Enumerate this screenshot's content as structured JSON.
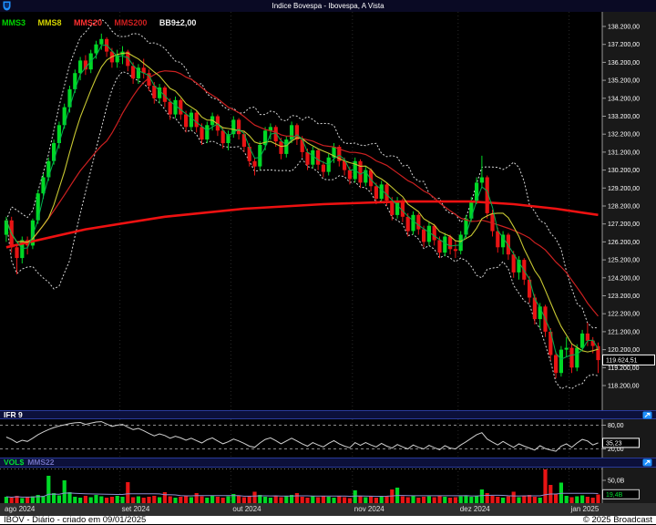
{
  "titlebar": {
    "title": "Indice Bovespa - Ibovespa, A Vista"
  },
  "legend": {
    "items": [
      {
        "label": "MMS3",
        "color": "#00d400"
      },
      {
        "label": "MMS8",
        "color": "#d4d400"
      },
      {
        "label": "MMS20",
        "color": "#ff3030"
      },
      {
        "label": "MMS200",
        "color": "#cf1f1f"
      },
      {
        "label": "BB9±2,00",
        "color": "#f0f0f0"
      }
    ]
  },
  "main_axis": {
    "ticks": [
      "138.200,00",
      "137.200,00",
      "136.200,00",
      "135.200,00",
      "134.200,00",
      "133.200,00",
      "132.200,00",
      "131.200,00",
      "130.200,00",
      "129.200,00",
      "128.200,00",
      "127.200,00",
      "126.200,00",
      "125.200,00",
      "124.200,00",
      "123.200,00",
      "122.200,00",
      "121.200,00",
      "120.200,00",
      "119.200,00",
      "118.200,00"
    ],
    "last_price_label": "119.624,51"
  },
  "time_axis": {
    "labels": [
      {
        "label": "ago 2024",
        "candle": 0
      },
      {
        "label": "set 2024",
        "candle": 22
      },
      {
        "label": "out 2024",
        "candle": 43
      },
      {
        "label": "nov 2024",
        "candle": 66
      },
      {
        "label": "dez 2024",
        "candle": 86
      },
      {
        "label": "jan 2025",
        "candle": 107
      }
    ]
  },
  "ifr_panel": {
    "title": "IFR 9",
    "upper_label": "80,00",
    "lower_label": "20,00",
    "value_label": "35,23"
  },
  "vol_panel": {
    "title": "VOL$",
    "ma_label": "MMS22",
    "tick_label": "50,0B",
    "value_label": "19,4B"
  },
  "status_bar": {
    "left": "IBOV - Diário - criado em 09/01/2025",
    "right": "© 2025 Broadcast"
  },
  "colors": {
    "up": "#00d926",
    "down": "#e81414",
    "mms3": "#00b050",
    "mms8": "#c8c832",
    "mms20": "#cc2020",
    "mms200": "#ee1111",
    "bollinger": "#d8d8d8",
    "ifr_line": "#d0d0d0",
    "vol_ma": "#8c8cd0",
    "panel_header": "#0c103a",
    "accent_blue": "#1e90ff",
    "axis_text": "#ffffff",
    "grid": "#282828"
  },
  "chart_data": {
    "type": "candlestick",
    "symbol": "IBOV",
    "period": "Diário",
    "title": "Indice Bovespa - Ibovespa, A Vista",
    "overlays": [
      "MMS3",
      "MMS8",
      "MMS20",
      "MMS200",
      "BB9±2,00"
    ],
    "last_price": 119624.51,
    "price_axis_range_thousands": [
      118.2,
      138.2
    ],
    "candles": [
      [
        126.6,
        127.6,
        126.2,
        127.4
      ],
      [
        127.4,
        127.6,
        125.6,
        125.9
      ],
      [
        125.9,
        126.1,
        124.4,
        125.3
      ],
      [
        125.3,
        126.5,
        125.0,
        126.3
      ],
      [
        126.3,
        126.5,
        125.5,
        126.0
      ],
      [
        126.0,
        127.5,
        125.8,
        127.4
      ],
      [
        127.4,
        129.1,
        127.2,
        128.9
      ],
      [
        128.9,
        130.0,
        128.6,
        129.8
      ],
      [
        129.8,
        130.9,
        129.6,
        130.7
      ],
      [
        130.7,
        131.9,
        130.5,
        131.7
      ],
      [
        131.7,
        132.9,
        131.4,
        132.7
      ],
      [
        132.7,
        133.9,
        132.5,
        133.7
      ],
      [
        133.7,
        134.9,
        133.4,
        134.7
      ],
      [
        134.7,
        135.8,
        134.5,
        135.6
      ],
      [
        135.6,
        136.5,
        135.2,
        136.3
      ],
      [
        136.3,
        136.6,
        135.5,
        135.8
      ],
      [
        135.8,
        136.9,
        135.6,
        136.7
      ],
      [
        136.7,
        137.4,
        136.4,
        137.2
      ],
      [
        137.2,
        137.8,
        136.9,
        137.5
      ],
      [
        137.5,
        137.6,
        136.5,
        136.8
      ],
      [
        136.8,
        137.0,
        135.9,
        136.2
      ],
      [
        136.2,
        136.9,
        135.9,
        136.6
      ],
      [
        136.6,
        137.1,
        136.1,
        136.8
      ],
      [
        136.8,
        136.9,
        135.7,
        136.0
      ],
      [
        136.0,
        136.2,
        135.0,
        135.3
      ],
      [
        135.3,
        136.1,
        135.0,
        135.9
      ],
      [
        135.9,
        136.4,
        135.3,
        135.6
      ],
      [
        135.6,
        135.8,
        134.6,
        134.9
      ],
      [
        134.9,
        135.1,
        133.9,
        134.2
      ],
      [
        134.2,
        135.0,
        133.9,
        134.8
      ],
      [
        134.8,
        134.9,
        133.7,
        134.0
      ],
      [
        134.0,
        134.2,
        133.0,
        133.3
      ],
      [
        133.3,
        134.3,
        133.1,
        134.1
      ],
      [
        134.1,
        134.2,
        133.0,
        133.3
      ],
      [
        133.3,
        133.5,
        132.3,
        132.6
      ],
      [
        132.6,
        133.6,
        132.4,
        133.4
      ],
      [
        133.4,
        133.5,
        132.3,
        132.6
      ],
      [
        132.6,
        132.8,
        131.6,
        131.9
      ],
      [
        131.9,
        132.9,
        131.7,
        132.7
      ],
      [
        132.7,
        133.4,
        132.4,
        133.2
      ],
      [
        133.2,
        133.3,
        132.1,
        132.4
      ],
      [
        132.4,
        132.6,
        131.4,
        131.7
      ],
      [
        131.7,
        132.4,
        131.3,
        132.2
      ],
      [
        132.2,
        133.2,
        132.0,
        133.0
      ],
      [
        133.0,
        133.1,
        131.9,
        132.2
      ],
      [
        132.2,
        132.4,
        131.2,
        131.5
      ],
      [
        131.5,
        131.7,
        130.4,
        130.7
      ],
      [
        130.7,
        130.9,
        129.9,
        130.4
      ],
      [
        130.4,
        131.8,
        130.2,
        131.6
      ],
      [
        131.6,
        132.6,
        131.3,
        132.4
      ],
      [
        132.4,
        132.8,
        131.9,
        132.6
      ],
      [
        132.6,
        132.7,
        131.5,
        131.8
      ],
      [
        131.8,
        132.0,
        130.8,
        131.1
      ],
      [
        131.1,
        132.1,
        130.9,
        131.9
      ],
      [
        131.9,
        132.9,
        131.7,
        132.7
      ],
      [
        132.7,
        132.8,
        131.6,
        131.9
      ],
      [
        131.9,
        132.1,
        130.9,
        131.2
      ],
      [
        131.2,
        131.4,
        130.2,
        130.5
      ],
      [
        130.5,
        131.5,
        130.3,
        131.3
      ],
      [
        131.3,
        131.4,
        130.2,
        130.5
      ],
      [
        130.5,
        130.7,
        129.8,
        130.1
      ],
      [
        130.1,
        131.1,
        129.9,
        130.9
      ],
      [
        130.9,
        131.7,
        130.6,
        131.5
      ],
      [
        131.5,
        131.6,
        130.4,
        130.7
      ],
      [
        130.7,
        130.9,
        129.9,
        130.2
      ],
      [
        130.2,
        130.4,
        129.4,
        129.7
      ],
      [
        129.7,
        130.9,
        129.5,
        130.7
      ],
      [
        130.7,
        130.8,
        129.2,
        129.5
      ],
      [
        129.5,
        130.4,
        129.3,
        130.2
      ],
      [
        130.2,
        130.3,
        129.0,
        129.3
      ],
      [
        129.3,
        129.5,
        128.3,
        128.6
      ],
      [
        128.6,
        129.6,
        128.4,
        129.4
      ],
      [
        129.4,
        129.5,
        128.2,
        128.5
      ],
      [
        128.5,
        128.7,
        127.4,
        127.7
      ],
      [
        127.7,
        128.7,
        127.5,
        128.5
      ],
      [
        128.5,
        128.6,
        127.3,
        127.6
      ],
      [
        127.6,
        127.8,
        126.5,
        126.8
      ],
      [
        126.8,
        127.9,
        126.6,
        127.7
      ],
      [
        127.7,
        127.8,
        126.6,
        126.9
      ],
      [
        126.9,
        127.1,
        125.9,
        126.2
      ],
      [
        126.2,
        127.3,
        126.0,
        127.1
      ],
      [
        127.1,
        127.2,
        126.0,
        126.3
      ],
      [
        126.3,
        126.5,
        125.3,
        125.6
      ],
      [
        125.6,
        126.7,
        125.4,
        126.5
      ],
      [
        126.5,
        126.6,
        125.5,
        125.8
      ],
      [
        125.8,
        126.3,
        125.3,
        125.7
      ],
      [
        125.7,
        126.8,
        125.5,
        126.6
      ],
      [
        126.6,
        127.7,
        126.4,
        127.5
      ],
      [
        127.5,
        128.7,
        127.3,
        128.5
      ],
      [
        128.5,
        129.8,
        128.3,
        129.5
      ],
      [
        129.5,
        131.0,
        129.2,
        129.8
      ],
      [
        129.8,
        129.9,
        127.5,
        127.8
      ],
      [
        127.8,
        128.0,
        126.5,
        126.8
      ],
      [
        126.8,
        127.0,
        125.6,
        125.9
      ],
      [
        125.9,
        126.8,
        125.5,
        126.6
      ],
      [
        126.6,
        126.7,
        125.2,
        125.5
      ],
      [
        125.5,
        125.7,
        124.2,
        124.5
      ],
      [
        124.5,
        125.4,
        124.1,
        125.2
      ],
      [
        125.2,
        125.3,
        123.8,
        124.1
      ],
      [
        124.1,
        124.3,
        122.8,
        123.1
      ],
      [
        123.1,
        123.3,
        121.6,
        121.9
      ],
      [
        121.9,
        122.8,
        121.4,
        122.6
      ],
      [
        122.6,
        122.7,
        120.9,
        121.2
      ],
      [
        121.2,
        121.4,
        119.6,
        119.9
      ],
      [
        119.9,
        120.1,
        118.6,
        118.9
      ],
      [
        118.9,
        120.4,
        118.7,
        120.2
      ],
      [
        120.2,
        120.9,
        119.8,
        120.3
      ],
      [
        120.3,
        120.5,
        118.9,
        119.2
      ],
      [
        119.2,
        120.5,
        119.0,
        120.3
      ],
      [
        120.3,
        121.3,
        120.1,
        121.1
      ],
      [
        121.1,
        121.7,
        120.4,
        120.7
      ],
      [
        120.7,
        120.9,
        120.0,
        120.4
      ],
      [
        120.4,
        120.6,
        118.9,
        119.62
      ]
    ],
    "volumes_billions": [
      14,
      12,
      16,
      11,
      13,
      15,
      18,
      16,
      60,
      22,
      17,
      50,
      24,
      14,
      12,
      16,
      13,
      18,
      15,
      12,
      14,
      16,
      14,
      46,
      13,
      15,
      12,
      14,
      16,
      13,
      24,
      15,
      12,
      14,
      16,
      13,
      22,
      15,
      12,
      17,
      14,
      12,
      15,
      20,
      16,
      13,
      15,
      25,
      18,
      14,
      12,
      16,
      13,
      15,
      18,
      22,
      14,
      12,
      15,
      13,
      16,
      14,
      12,
      15,
      13,
      11,
      28,
      16,
      13,
      15,
      12,
      14,
      16,
      30,
      34,
      15,
      13,
      16,
      12,
      14,
      15,
      13,
      16,
      14,
      12,
      13,
      15,
      17,
      14,
      16,
      30,
      22,
      16,
      14,
      12,
      15,
      25,
      13,
      16,
      18,
      14,
      12,
      74,
      40,
      20,
      45,
      16,
      13,
      15,
      17,
      14,
      12,
      19
    ],
    "ifr9": [
      50,
      44,
      36,
      42,
      39,
      47,
      56,
      63,
      69,
      74,
      78,
      81,
      84,
      86,
      87,
      82,
      85,
      88,
      89,
      83,
      77,
      80,
      82,
      75,
      69,
      72,
      66,
      59,
      53,
      58,
      54,
      47,
      52,
      48,
      42,
      47,
      41,
      35,
      43,
      48,
      40,
      33,
      38,
      45,
      40,
      34,
      27,
      24,
      35,
      44,
      48,
      41,
      33,
      40,
      47,
      40,
      33,
      27,
      36,
      30,
      25,
      34,
      41,
      33,
      27,
      23,
      36,
      29,
      36,
      30,
      25,
      34,
      27,
      22,
      31,
      25,
      20,
      30,
      24,
      20,
      29,
      23,
      18,
      28,
      22,
      20,
      30,
      38,
      47,
      56,
      61,
      45,
      37,
      30,
      39,
      31,
      24,
      33,
      27,
      22,
      17,
      28,
      21,
      17,
      14,
      27,
      33,
      24,
      35,
      44,
      40,
      30,
      35.23
    ],
    "mms200_anchors": [
      [
        0,
        125.9
      ],
      [
        15,
        126.9
      ],
      [
        30,
        127.6
      ],
      [
        45,
        128.05
      ],
      [
        60,
        128.3
      ],
      [
        75,
        128.45
      ],
      [
        88,
        128.45
      ],
      [
        96,
        128.3
      ],
      [
        104,
        128.05
      ],
      [
        112,
        127.7
      ]
    ]
  }
}
